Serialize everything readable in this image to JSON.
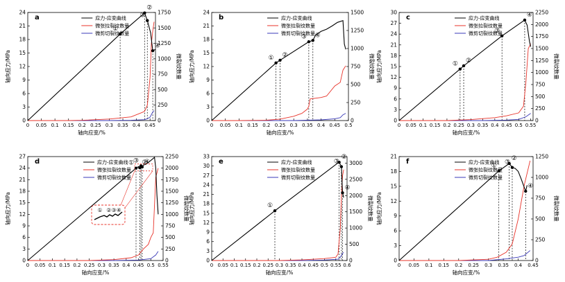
{
  "chart_data": [
    {
      "type": "line",
      "panel_label": "a",
      "xlabel": "轴向应变/%",
      "ylabel": "轴向应力/MPa",
      "y2label": "微裂纹数量",
      "xlim": [
        0,
        0.47
      ],
      "xticks": [
        0,
        0.05,
        0.1,
        0.15,
        0.2,
        0.25,
        0.3,
        0.35,
        0.4,
        0.45
      ],
      "ylim": [
        0,
        24
      ],
      "yticks": [
        0,
        3,
        6,
        9,
        12,
        15,
        18,
        21,
        24
      ],
      "y2lim": [
        0,
        1750
      ],
      "y2ticks": [
        0,
        250,
        500,
        750,
        1000,
        1250,
        1500,
        1750
      ],
      "legend": [
        "应力-应变曲线",
        "微张拉裂纹数量",
        "微剪切裂纹数量"
      ],
      "colors": {
        "stress": "#000000",
        "tension": "#e8332a",
        "shear": "#3a3ab8"
      },
      "stress_strain": [
        [
          0,
          0
        ],
        [
          0.34,
          19.2
        ],
        [
          0.43,
          23.9
        ],
        [
          0.44,
          22.2
        ],
        [
          0.452,
          19.5
        ],
        [
          0.46,
          15.5
        ],
        [
          0.47,
          15.8
        ]
      ],
      "tension_cracks": [
        [
          0,
          0
        ],
        [
          0.15,
          0
        ],
        [
          0.2,
          5
        ],
        [
          0.3,
          25
        ],
        [
          0.38,
          60
        ],
        [
          0.42,
          130
        ],
        [
          0.43,
          150
        ],
        [
          0.44,
          250
        ],
        [
          0.45,
          700
        ],
        [
          0.455,
          1250
        ],
        [
          0.46,
          1450
        ],
        [
          0.465,
          1600
        ]
      ],
      "shear_cracks": [
        [
          0,
          0
        ],
        [
          0.3,
          0
        ],
        [
          0.38,
          5
        ],
        [
          0.43,
          15
        ],
        [
          0.44,
          30
        ],
        [
          0.45,
          55
        ],
        [
          0.46,
          140
        ],
        [
          0.465,
          160
        ]
      ],
      "markers": [
        {
          "label": "①",
          "x": 0.34,
          "y": 19.2
        },
        {
          "label": "②",
          "x": 0.43,
          "y": 23.9
        },
        {
          "label": "③",
          "x": 0.44,
          "y": 22.2
        },
        {
          "label": "④",
          "x": 0.46,
          "y": 15.5
        }
      ]
    },
    {
      "type": "line",
      "panel_label": "b",
      "xlabel": "轴向应变/%",
      "ylabel": "轴向应力/MPa",
      "y2label": "微裂纹数量",
      "xlim": [
        0,
        0.5
      ],
      "xticks": [
        0,
        0.05,
        0.1,
        0.15,
        0.2,
        0.25,
        0.3,
        0.35,
        0.4,
        0.45,
        0.5
      ],
      "ylim": [
        0,
        24
      ],
      "yticks": [
        0,
        3,
        6,
        9,
        12,
        15,
        18,
        21,
        24
      ],
      "y2lim": [
        0,
        1500
      ],
      "y2ticks": [
        0,
        250,
        500,
        750,
        1000,
        1250,
        1500
      ],
      "legend": [
        "应力-应变曲线",
        "微张拉裂纹数量",
        "微剪切裂纹数量"
      ],
      "colors": {
        "stress": "#000000",
        "tension": "#e8332a",
        "shear": "#3a3ab8"
      },
      "stress_strain": [
        [
          0,
          0
        ],
        [
          0.235,
          12.8
        ],
        [
          0.25,
          13.4
        ],
        [
          0.355,
          17.5
        ],
        [
          0.37,
          17.8
        ],
        [
          0.38,
          19.0
        ],
        [
          0.4,
          19.8
        ],
        [
          0.42,
          20.3
        ],
        [
          0.44,
          21.0
        ],
        [
          0.46,
          21.8
        ],
        [
          0.48,
          22.2
        ],
        [
          0.485,
          17.0
        ],
        [
          0.49,
          15.8
        ]
      ],
      "tension_cracks": [
        [
          0,
          0
        ],
        [
          0.1,
          0
        ],
        [
          0.2,
          5
        ],
        [
          0.25,
          20
        ],
        [
          0.3,
          60
        ],
        [
          0.33,
          100
        ],
        [
          0.35,
          160
        ],
        [
          0.355,
          200
        ],
        [
          0.36,
          300
        ],
        [
          0.4,
          320
        ],
        [
          0.42,
          340
        ],
        [
          0.45,
          480
        ],
        [
          0.47,
          530
        ],
        [
          0.48,
          700
        ],
        [
          0.49,
          760
        ]
      ],
      "shear_cracks": [
        [
          0,
          0
        ],
        [
          0.3,
          0
        ],
        [
          0.4,
          10
        ],
        [
          0.45,
          25
        ],
        [
          0.47,
          40
        ],
        [
          0.48,
          80
        ],
        [
          0.49,
          100
        ]
      ],
      "markers": [
        {
          "label": "①",
          "x": 0.235,
          "y": 12.8
        },
        {
          "label": "②",
          "x": 0.25,
          "y": 13.4
        },
        {
          "label": "③",
          "x": 0.355,
          "y": 17.5
        },
        {
          "label": "④",
          "x": 0.37,
          "y": 17.8
        }
      ]
    },
    {
      "type": "line",
      "panel_label": "c",
      "xlabel": "轴向应变/%",
      "ylabel": "轴向应力/MPa",
      "y2label": "微裂纹数量",
      "xlim": [
        0,
        0.56
      ],
      "xticks": [
        0,
        0.05,
        0.1,
        0.15,
        0.2,
        0.25,
        0.3,
        0.35,
        0.4,
        0.45,
        0.5,
        0.55
      ],
      "ylim": [
        0,
        30
      ],
      "yticks": [
        0,
        3,
        6,
        9,
        12,
        15,
        18,
        21,
        24,
        27,
        30
      ],
      "y2lim": [
        0,
        2250
      ],
      "y2ticks": [
        0,
        250,
        500,
        750,
        1000,
        1250,
        1500,
        1750,
        2000,
        2250
      ],
      "legend": [
        "应力-应变曲线",
        "微张拉裂纹数量",
        "微剪切裂纹数量"
      ],
      "colors": {
        "stress": "#000000",
        "tension": "#e8332a",
        "shear": "#3a3ab8"
      },
      "stress_strain": [
        [
          0,
          0
        ],
        [
          0.255,
          14.3
        ],
        [
          0.27,
          15.2
        ],
        [
          0.43,
          23.5
        ],
        [
          0.525,
          27.9
        ],
        [
          0.535,
          26.5
        ],
        [
          0.545,
          22.0
        ],
        [
          0.55,
          20.5
        ]
      ],
      "tension_cracks": [
        [
          0,
          0
        ],
        [
          0.2,
          0
        ],
        [
          0.3,
          20
        ],
        [
          0.4,
          60
        ],
        [
          0.45,
          100
        ],
        [
          0.5,
          160
        ],
        [
          0.52,
          300
        ],
        [
          0.53,
          800
        ],
        [
          0.54,
          1500
        ],
        [
          0.55,
          1600
        ]
      ],
      "shear_cracks": [
        [
          0,
          0
        ],
        [
          0.35,
          0
        ],
        [
          0.45,
          10
        ],
        [
          0.5,
          25
        ],
        [
          0.53,
          80
        ],
        [
          0.55,
          150
        ]
      ],
      "markers": [
        {
          "label": "①",
          "x": 0.255,
          "y": 14.3
        },
        {
          "label": "②",
          "x": 0.27,
          "y": 15.2
        },
        {
          "label": "③",
          "x": 0.43,
          "y": 23.5
        },
        {
          "label": "④",
          "x": 0.525,
          "y": 27.9
        }
      ]
    },
    {
      "type": "line",
      "panel_label": "d",
      "xlabel": "轴向应变/%",
      "ylabel": "轴向应力/MPa",
      "y2label": "微裂纹数量",
      "xlim": [
        0,
        0.55
      ],
      "xticks": [
        0,
        0.05,
        0.1,
        0.15,
        0.2,
        0.25,
        0.3,
        0.35,
        0.4,
        0.45,
        0.5,
        0.55
      ],
      "ylim": [
        0,
        27
      ],
      "yticks": [
        0,
        3,
        6,
        9,
        12,
        15,
        18,
        21,
        24,
        27
      ],
      "y2lim": [
        0,
        2250
      ],
      "y2ticks": [
        0,
        250,
        500,
        750,
        1000,
        1250,
        1500,
        1750,
        2000,
        2250
      ],
      "legend": [
        "应力-应变曲线",
        "微张拉裂纹数量",
        "微剪切裂纹数量"
      ],
      "colors": {
        "stress": "#000000",
        "tension": "#e8332a",
        "shear": "#3a3ab8"
      },
      "stress_strain": [
        [
          0,
          0
        ],
        [
          0.44,
          24.0
        ],
        [
          0.45,
          24.4
        ],
        [
          0.455,
          24.1
        ],
        [
          0.46,
          24.6
        ],
        [
          0.465,
          24.3
        ],
        [
          0.47,
          24.8
        ],
        [
          0.48,
          25.0
        ],
        [
          0.5,
          26.0
        ],
        [
          0.515,
          26.8
        ],
        [
          0.52,
          24.0
        ],
        [
          0.525,
          17.0
        ],
        [
          0.53,
          12.0
        ]
      ],
      "tension_cracks": [
        [
          0,
          0
        ],
        [
          0.25,
          0
        ],
        [
          0.35,
          20
        ],
        [
          0.42,
          60
        ],
        [
          0.45,
          120
        ],
        [
          0.47,
          250
        ],
        [
          0.49,
          350
        ],
        [
          0.5,
          500
        ],
        [
          0.51,
          600
        ],
        [
          0.515,
          1200
        ],
        [
          0.52,
          1800
        ],
        [
          0.53,
          2000
        ]
      ],
      "shear_cracks": [
        [
          0,
          0
        ],
        [
          0.35,
          0
        ],
        [
          0.45,
          10
        ],
        [
          0.5,
          40
        ],
        [
          0.52,
          120
        ],
        [
          0.53,
          200
        ]
      ],
      "markers": [
        {
          "label": "①",
          "x": 0.44,
          "y": 24.0
        },
        {
          "label": "②",
          "x": 0.455,
          "y": 24.1
        },
        {
          "label": "③",
          "x": 0.46,
          "y": 24.6
        },
        {
          "label": "④",
          "x": 0.465,
          "y": 24.3
        }
      ],
      "inset_labels": [
        "①",
        "②③④"
      ]
    },
    {
      "type": "line",
      "panel_label": "e",
      "xlabel": "轴向应变/%",
      "ylabel": "轴向应力/MPa",
      "y2label": "微裂纹数量",
      "xlim": [
        0,
        0.6
      ],
      "xticks": [
        0,
        0.05,
        0.1,
        0.15,
        0.2,
        0.25,
        0.3,
        0.35,
        0.4,
        0.45,
        0.5,
        0.55,
        0.6
      ],
      "ylim": [
        0,
        33
      ],
      "yticks": [
        0,
        3,
        6,
        9,
        12,
        15,
        18,
        21,
        24,
        27,
        30,
        33
      ],
      "y2lim": [
        0,
        3200
      ],
      "y2ticks": [
        0,
        500,
        1000,
        1500,
        2000,
        2500,
        3000
      ],
      "legend": [
        "应力-应变曲线",
        "微张拉裂纹数量",
        "微剪切裂纹数量"
      ],
      "colors": {
        "stress": "#000000",
        "tension": "#e8332a",
        "shear": "#3a3ab8"
      },
      "stress_strain": [
        [
          0,
          0
        ],
        [
          0.28,
          15.8
        ],
        [
          0.56,
          31.0
        ],
        [
          0.565,
          31.2
        ],
        [
          0.57,
          30.5
        ],
        [
          0.575,
          29.8
        ],
        [
          0.58,
          21.5
        ],
        [
          0.585,
          20.0
        ]
      ],
      "tension_cracks": [
        [
          0,
          0
        ],
        [
          0.3,
          0
        ],
        [
          0.4,
          20
        ],
        [
          0.5,
          60
        ],
        [
          0.55,
          100
        ],
        [
          0.56,
          200
        ],
        [
          0.57,
          1000
        ],
        [
          0.575,
          2000
        ],
        [
          0.58,
          2600
        ],
        [
          0.585,
          2800
        ]
      ],
      "shear_cracks": [
        [
          0,
          0
        ],
        [
          0.4,
          0
        ],
        [
          0.5,
          15
        ],
        [
          0.56,
          40
        ],
        [
          0.57,
          100
        ],
        [
          0.58,
          220
        ],
        [
          0.585,
          250
        ]
      ],
      "markers": [
        {
          "label": "①",
          "x": 0.28,
          "y": 15.8
        },
        {
          "label": "②",
          "x": 0.565,
          "y": 31.2
        },
        {
          "label": "③",
          "x": 0.575,
          "y": 29.8
        },
        {
          "label": "④",
          "x": 0.58,
          "y": 21.5
        }
      ]
    },
    {
      "type": "line",
      "panel_label": "f",
      "xlabel": "轴向应变/%",
      "ylabel": "轴向应力/MPa",
      "y2label": "微裂纹数量",
      "xlim": [
        0,
        0.45
      ],
      "xticks": [
        0,
        0.05,
        0.1,
        0.15,
        0.2,
        0.25,
        0.3,
        0.35,
        0.4,
        0.45
      ],
      "ylim": [
        0,
        21
      ],
      "yticks": [
        0,
        3,
        6,
        9,
        12,
        15,
        18,
        21
      ],
      "y2lim": [
        0,
        1250
      ],
      "y2ticks": [
        0,
        250,
        500,
        750,
        1000,
        1250
      ],
      "legend": [
        "应力-应变曲线",
        "微张拉裂纹数量",
        "微剪切裂纹数量"
      ],
      "colors": {
        "stress": "#000000",
        "tension": "#e8332a",
        "shear": "#3a3ab8"
      },
      "stress_strain": [
        [
          0,
          0
        ],
        [
          0.335,
          18.1
        ],
        [
          0.37,
          19.6
        ],
        [
          0.38,
          18.8
        ],
        [
          0.39,
          18.6
        ],
        [
          0.4,
          18.0
        ],
        [
          0.41,
          16.5
        ],
        [
          0.425,
          14.0
        ],
        [
          0.43,
          15.2
        ]
      ],
      "tension_cracks": [
        [
          0,
          0
        ],
        [
          0.2,
          0
        ],
        [
          0.3,
          15
        ],
        [
          0.33,
          40
        ],
        [
          0.36,
          100
        ],
        [
          0.38,
          200
        ],
        [
          0.4,
          500
        ],
        [
          0.42,
          900
        ],
        [
          0.44,
          1200
        ]
      ],
      "shear_cracks": [
        [
          0,
          0
        ],
        [
          0.3,
          0
        ],
        [
          0.36,
          20
        ],
        [
          0.4,
          40
        ],
        [
          0.42,
          60
        ],
        [
          0.44,
          120
        ]
      ],
      "markers": [
        {
          "label": "①",
          "x": 0.335,
          "y": 18.1
        },
        {
          "label": "②",
          "x": 0.37,
          "y": 19.6
        },
        {
          "label": "③",
          "x": 0.38,
          "y": 18.8
        },
        {
          "label": "④",
          "x": 0.425,
          "y": 14.0
        }
      ]
    }
  ]
}
